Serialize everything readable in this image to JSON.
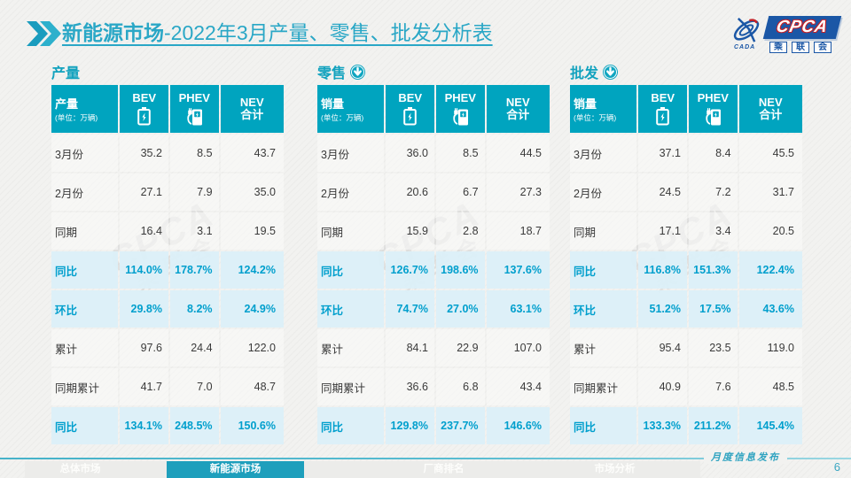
{
  "header": {
    "title_bold": "新能源市场",
    "title_rest": "-2022年3月产量、零售、批发分析表",
    "logo": {
      "cpca": "CPCA",
      "cada": "CADA",
      "sub_chars": [
        "乘",
        "联",
        "会"
      ]
    }
  },
  "tables": [
    {
      "section_title": "产量",
      "corner_label": "产量",
      "corner_unit": "(单位：万辆)",
      "columns": [
        {
          "label": "BEV"
        },
        {
          "label": "PHEV"
        },
        {
          "label": "NEV",
          "sub": "合计"
        }
      ],
      "rows": [
        {
          "label": "3月份",
          "values": [
            "35.2",
            "8.5",
            "43.7"
          ],
          "highlight": false
        },
        {
          "label": "2月份",
          "values": [
            "27.1",
            "7.9",
            "35.0"
          ],
          "highlight": false
        },
        {
          "label": "同期",
          "values": [
            "16.4",
            "3.1",
            "19.5"
          ],
          "highlight": false
        },
        {
          "label": "同比",
          "values": [
            "114.0%",
            "178.7%",
            "124.2%"
          ],
          "highlight": true
        },
        {
          "label": "环比",
          "values": [
            "29.8%",
            "8.2%",
            "24.9%"
          ],
          "highlight": true
        },
        {
          "label": "累计",
          "values": [
            "97.6",
            "24.4",
            "122.0"
          ],
          "highlight": false
        },
        {
          "label": "同期累计",
          "values": [
            "41.7",
            "7.0",
            "48.7"
          ],
          "highlight": false
        },
        {
          "label": "同比",
          "values": [
            "134.1%",
            "248.5%",
            "150.6%"
          ],
          "highlight": true
        }
      ]
    },
    {
      "section_title": "零售",
      "corner_label": "销量",
      "corner_unit": "(单位：万辆)",
      "columns": [
        {
          "label": "BEV"
        },
        {
          "label": "PHEV"
        },
        {
          "label": "NEV",
          "sub": "合计"
        }
      ],
      "rows": [
        {
          "label": "3月份",
          "values": [
            "36.0",
            "8.5",
            "44.5"
          ],
          "highlight": false
        },
        {
          "label": "2月份",
          "values": [
            "20.6",
            "6.7",
            "27.3"
          ],
          "highlight": false
        },
        {
          "label": "同期",
          "values": [
            "15.9",
            "2.8",
            "18.7"
          ],
          "highlight": false
        },
        {
          "label": "同比",
          "values": [
            "126.7%",
            "198.6%",
            "137.6%"
          ],
          "highlight": true
        },
        {
          "label": "环比",
          "values": [
            "74.7%",
            "27.0%",
            "63.1%"
          ],
          "highlight": true
        },
        {
          "label": "累计",
          "values": [
            "84.1",
            "22.9",
            "107.0"
          ],
          "highlight": false
        },
        {
          "label": "同期累计",
          "values": [
            "36.6",
            "6.8",
            "43.4"
          ],
          "highlight": false
        },
        {
          "label": "同比",
          "values": [
            "129.8%",
            "237.7%",
            "146.6%"
          ],
          "highlight": true
        }
      ]
    },
    {
      "section_title": "批发",
      "corner_label": "销量",
      "corner_unit": "(单位：万辆)",
      "columns": [
        {
          "label": "BEV"
        },
        {
          "label": "PHEV"
        },
        {
          "label": "NEV",
          "sub": "合计"
        }
      ],
      "rows": [
        {
          "label": "3月份",
          "values": [
            "37.1",
            "8.4",
            "45.5"
          ],
          "highlight": false
        },
        {
          "label": "2月份",
          "values": [
            "24.5",
            "7.2",
            "31.7"
          ],
          "highlight": false
        },
        {
          "label": "同期",
          "values": [
            "17.1",
            "3.4",
            "20.5"
          ],
          "highlight": false
        },
        {
          "label": "同比",
          "values": [
            "116.8%",
            "151.3%",
            "122.4%"
          ],
          "highlight": true
        },
        {
          "label": "环比",
          "values": [
            "51.2%",
            "17.5%",
            "43.6%"
          ],
          "highlight": true
        },
        {
          "label": "累计",
          "values": [
            "95.4",
            "23.5",
            "119.0"
          ],
          "highlight": false
        },
        {
          "label": "同期累计",
          "values": [
            "40.9",
            "7.6",
            "48.5"
          ],
          "highlight": false
        },
        {
          "label": "同比",
          "values": [
            "133.3%",
            "211.2%",
            "145.4%"
          ],
          "highlight": true
        }
      ]
    }
  ],
  "watermark": {
    "line1": "CPCA",
    "line2": "乘联会"
  },
  "footer": {
    "tabs": [
      {
        "label": "总体市场",
        "active": false
      },
      {
        "label": "新能源市场",
        "active": true
      },
      {
        "label": "厂商排名",
        "active": false
      },
      {
        "label": "市场分析",
        "active": false
      }
    ],
    "publish_label": "月度信息发布",
    "page_number": "6"
  },
  "colors": {
    "accent_teal": "#00a4bf",
    "title_teal": "#2aa7c6",
    "highlight_bg": "#dbf0f9",
    "highlight_text": "#009fcd",
    "logo_blue": "#1b57a6",
    "logo_red": "#c42127"
  }
}
